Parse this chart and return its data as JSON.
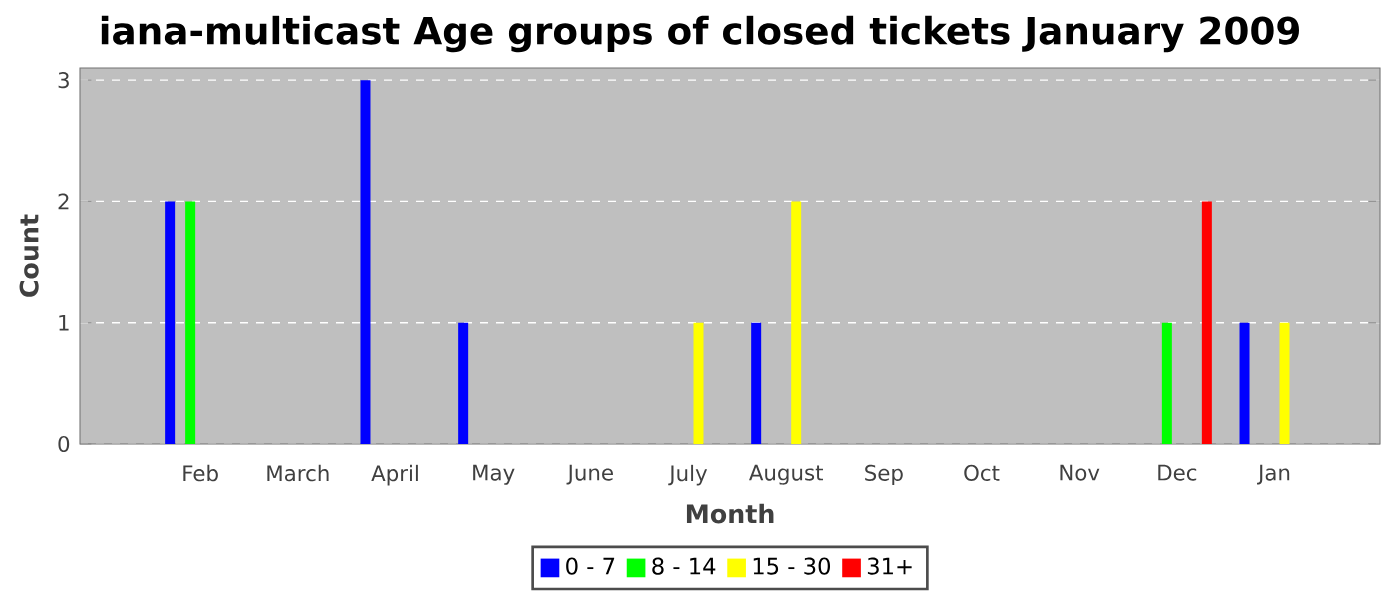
{
  "chart_data": {
    "type": "bar",
    "title": "iana-multicast Age groups of closed tickets January 2009",
    "xlabel": "Month",
    "ylabel": "Count",
    "categories": [
      "Feb",
      "March",
      "April",
      "May",
      "June",
      "July",
      "August",
      "Sep",
      "Oct",
      "Nov",
      "Dec",
      "Jan"
    ],
    "series": [
      {
        "name": "0 - 7",
        "color": "#0000ff",
        "values": [
          2,
          0,
          3,
          1,
          0,
          0,
          1,
          0,
          0,
          0,
          0,
          1
        ]
      },
      {
        "name": "8 - 14",
        "color": "#00ff00",
        "values": [
          2,
          0,
          0,
          0,
          0,
          0,
          0,
          0,
          0,
          0,
          1,
          0
        ]
      },
      {
        "name": "15 - 30",
        "color": "#ffff00",
        "values": [
          0,
          0,
          0,
          0,
          0,
          1,
          2,
          0,
          0,
          0,
          0,
          1
        ]
      },
      {
        "name": "31+",
        "color": "#ff0000",
        "values": [
          0,
          0,
          0,
          0,
          0,
          0,
          0,
          0,
          0,
          0,
          2,
          0
        ]
      }
    ],
    "ylim": [
      0,
      3.1
    ],
    "yticks": [
      0,
      1,
      2,
      3
    ],
    "grid": "y",
    "legend": "bottom"
  }
}
